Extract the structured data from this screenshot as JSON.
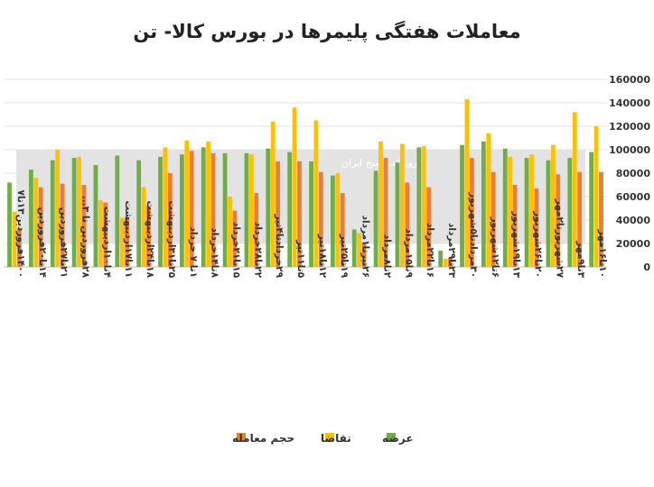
{
  "chart_data": {
    "type": "bar",
    "title": "معاملات هفتگی پلیمرها در بورس کالا- تن",
    "xlabel": "",
    "ylabel": "",
    "ylim": [
      0,
      160000
    ],
    "yticks": [
      0,
      20000,
      40000,
      60000,
      80000,
      100000,
      120000,
      140000,
      160000
    ],
    "ytick_labels": [
      "0",
      "20000",
      "40000",
      "60000",
      "80000",
      "100000",
      "120000",
      "140000",
      "160000"
    ],
    "grid": true,
    "legend_position": "bottom",
    "categories": [
      "۱۴۰۰فروردین۱۳تا۷",
      "۱۴تا۲۰فروردین",
      "۲۱تا۲۷فروردین",
      "۲۸فروردین تا ۳...",
      "۴تا۱۰اردیبهشت",
      "۱۱تا۱۷اردیبهشت",
      "۱۸تا۲۴اردیبهشت",
      "۲۵تا۳۱اردیبهشت",
      "۱تا ۷ خرداد",
      "۸تا۱۴خرداد",
      "۱۵تا۲۱خرداد",
      "۲۲تا۲۸خرداد",
      "۲۹خردادتا۴تیر",
      "۵تا۱۱تیر",
      "۱۲تا۱۸تیر",
      "۱۹تا۲۵تیر",
      "۲۶تیرتا۱مرداد",
      "۲تا۸مرداد",
      "۹تا۱۵مرداد",
      "۱۶تا۲۲مرداد",
      "۲۳تا۲۹مرداد",
      "۳۰مردادتا۵شهریور",
      "۶تا۱۲شهریور",
      "۱۳تا۱۹شهریور",
      "۲۰تا۲۶شهریور",
      "۲۷شهریورتا۲مهر",
      "۳تا۹مهر",
      "۱۰تا۱۶مهر"
    ],
    "series": [
      {
        "name": "عرضه",
        "color": "#70AD47",
        "values": [
          72000,
          83000,
          91000,
          93000,
          87000,
          95000,
          91000,
          94000,
          96000,
          102000,
          97000,
          97000,
          101000,
          98000,
          90000,
          78000,
          32000,
          82000,
          89000,
          102000,
          14000,
          104000,
          107000,
          101000,
          93000,
          91000,
          93000,
          98000
        ]
      },
      {
        "name": "تقاضا",
        "color": "#FFC000",
        "values": [
          47000,
          76000,
          100000,
          94000,
          57000,
          42000,
          68000,
          102000,
          108000,
          107000,
          60000,
          96000,
          124000,
          136000,
          125000,
          80000,
          29000,
          107000,
          105000,
          103000,
          7000,
          143000,
          114000,
          94000,
          96000,
          104000,
          132000,
          120000
        ]
      },
      {
        "name": "حجم معامله",
        "color": "#ED7D31",
        "values": [
          33000,
          68000,
          71000,
          70000,
          55000,
          42000,
          52000,
          80000,
          99000,
          97000,
          48000,
          63000,
          90000,
          90000,
          81000,
          63000,
          21000,
          93000,
          72000,
          68000,
          8000,
          93000,
          81000,
          70000,
          67000,
          79000,
          81000,
          81000
        ]
      }
    ]
  },
  "watermark": {
    "caption": "روزنامه صبح ایران"
  }
}
